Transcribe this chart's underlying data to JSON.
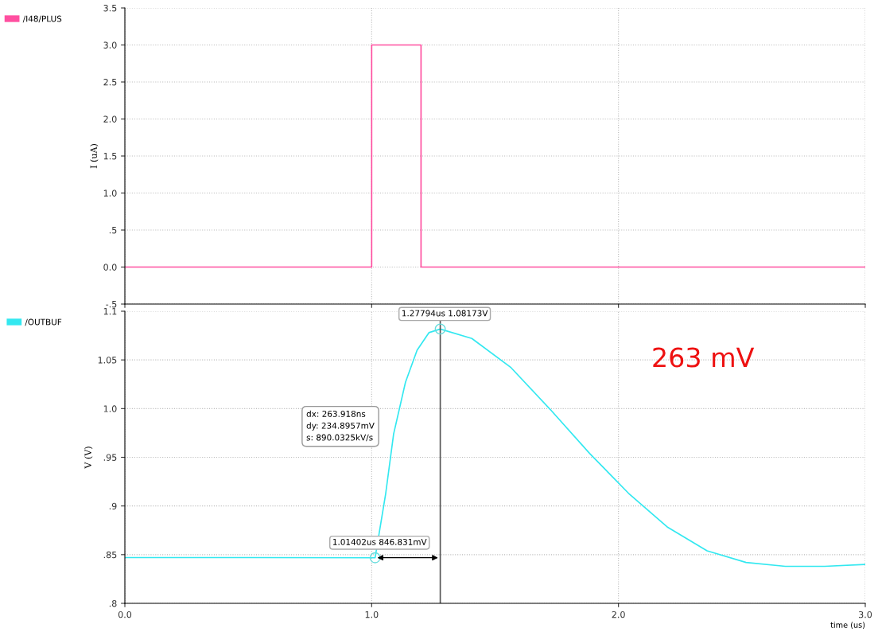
{
  "chart_data": [
    {
      "type": "line",
      "ylabel": "I (uA)",
      "xlim": [
        0,
        3.0
      ],
      "xticks": [
        {
          "value": 0,
          "label": null
        },
        {
          "value": 1,
          "label": null
        },
        {
          "value": 2,
          "label": null
        },
        {
          "value": 3,
          "label": null
        }
      ],
      "ylim": [
        -0.5,
        3.5
      ],
      "yticks": [
        {
          "value": -0.5,
          "label": "-.5"
        },
        {
          "value": 0,
          "label": "0.0"
        },
        {
          "value": 0.5,
          "label": ".5"
        },
        {
          "value": 1,
          "label": "1.0"
        },
        {
          "value": 1.5,
          "label": "1.5"
        },
        {
          "value": 2,
          "label": "2.0"
        },
        {
          "value": 2.5,
          "label": "2.5"
        },
        {
          "value": 3,
          "label": "3.0"
        },
        {
          "value": 3.5,
          "label": "3.5"
        }
      ],
      "grid": true,
      "legend": "left",
      "tick_labels": "y",
      "marker": "none",
      "line_style": "solid",
      "x": [
        0,
        1.0,
        1.0,
        1.2,
        1.2,
        3.0
      ],
      "series": [
        {
          "name": "/I48/PLUS",
          "color": "#ff4fa0",
          "values": [
            0,
            0,
            3,
            3,
            0,
            0
          ]
        }
      ]
    },
    {
      "type": "line",
      "ylabel": "V (V)",
      "xlabel": "time (us)",
      "xlim": [
        0,
        3.0
      ],
      "xticks": [
        {
          "value": 0,
          "label": "0.0"
        },
        {
          "value": 1,
          "label": "1.0"
        },
        {
          "value": 2,
          "label": "2.0"
        },
        {
          "value": 3,
          "label": "3.0"
        }
      ],
      "ylim": [
        0.8,
        1.1
      ],
      "yticks": [
        {
          "value": 0.8,
          "label": ".8"
        },
        {
          "value": 0.85,
          "label": ".85"
        },
        {
          "value": 0.9,
          "label": ".9"
        },
        {
          "value": 0.95,
          "label": ".95"
        },
        {
          "value": 1.0,
          "label": "1.0"
        },
        {
          "value": 1.05,
          "label": "1.05"
        },
        {
          "value": 1.1,
          "label": "1.1"
        }
      ],
      "grid": true,
      "legend": "left",
      "marker": "none",
      "line_style": "solid",
      "x": [
        0,
        0.5,
        1.01402,
        1.057,
        1.089,
        1.137,
        1.184,
        1.232,
        1.27794,
        1.406,
        1.565,
        1.724,
        1.883,
        2.041,
        2.2,
        2.359,
        2.517,
        2.676,
        2.835,
        3.0
      ],
      "series": [
        {
          "name": "/OUTBUF",
          "color": "#33e8f0",
          "values": [
            0.847,
            0.847,
            0.846831,
            0.913,
            0.974,
            1.027,
            1.06,
            1.078,
            1.08173,
            1.072,
            1.042,
            0.999,
            0.954,
            0.913,
            0.878,
            0.854,
            0.842,
            0.838,
            0.838,
            0.84
          ]
        }
      ],
      "ref_lines": [
        {
          "axis": "x",
          "value": 1.27794,
          "color": "#555555",
          "line_style": "solid"
        }
      ],
      "annotations": [
        {
          "text": "1.27794us 1.08173V",
          "x": 1.27794,
          "y": 1.08173
        },
        {
          "text": "1.01402us 846.831mV",
          "x": 1.01402,
          "y": 0.846831
        },
        "dx: 263.918ns\ndy: 234.8957mV\ns: 890.0325kV/s",
        "263 mV"
      ]
    }
  ]
}
